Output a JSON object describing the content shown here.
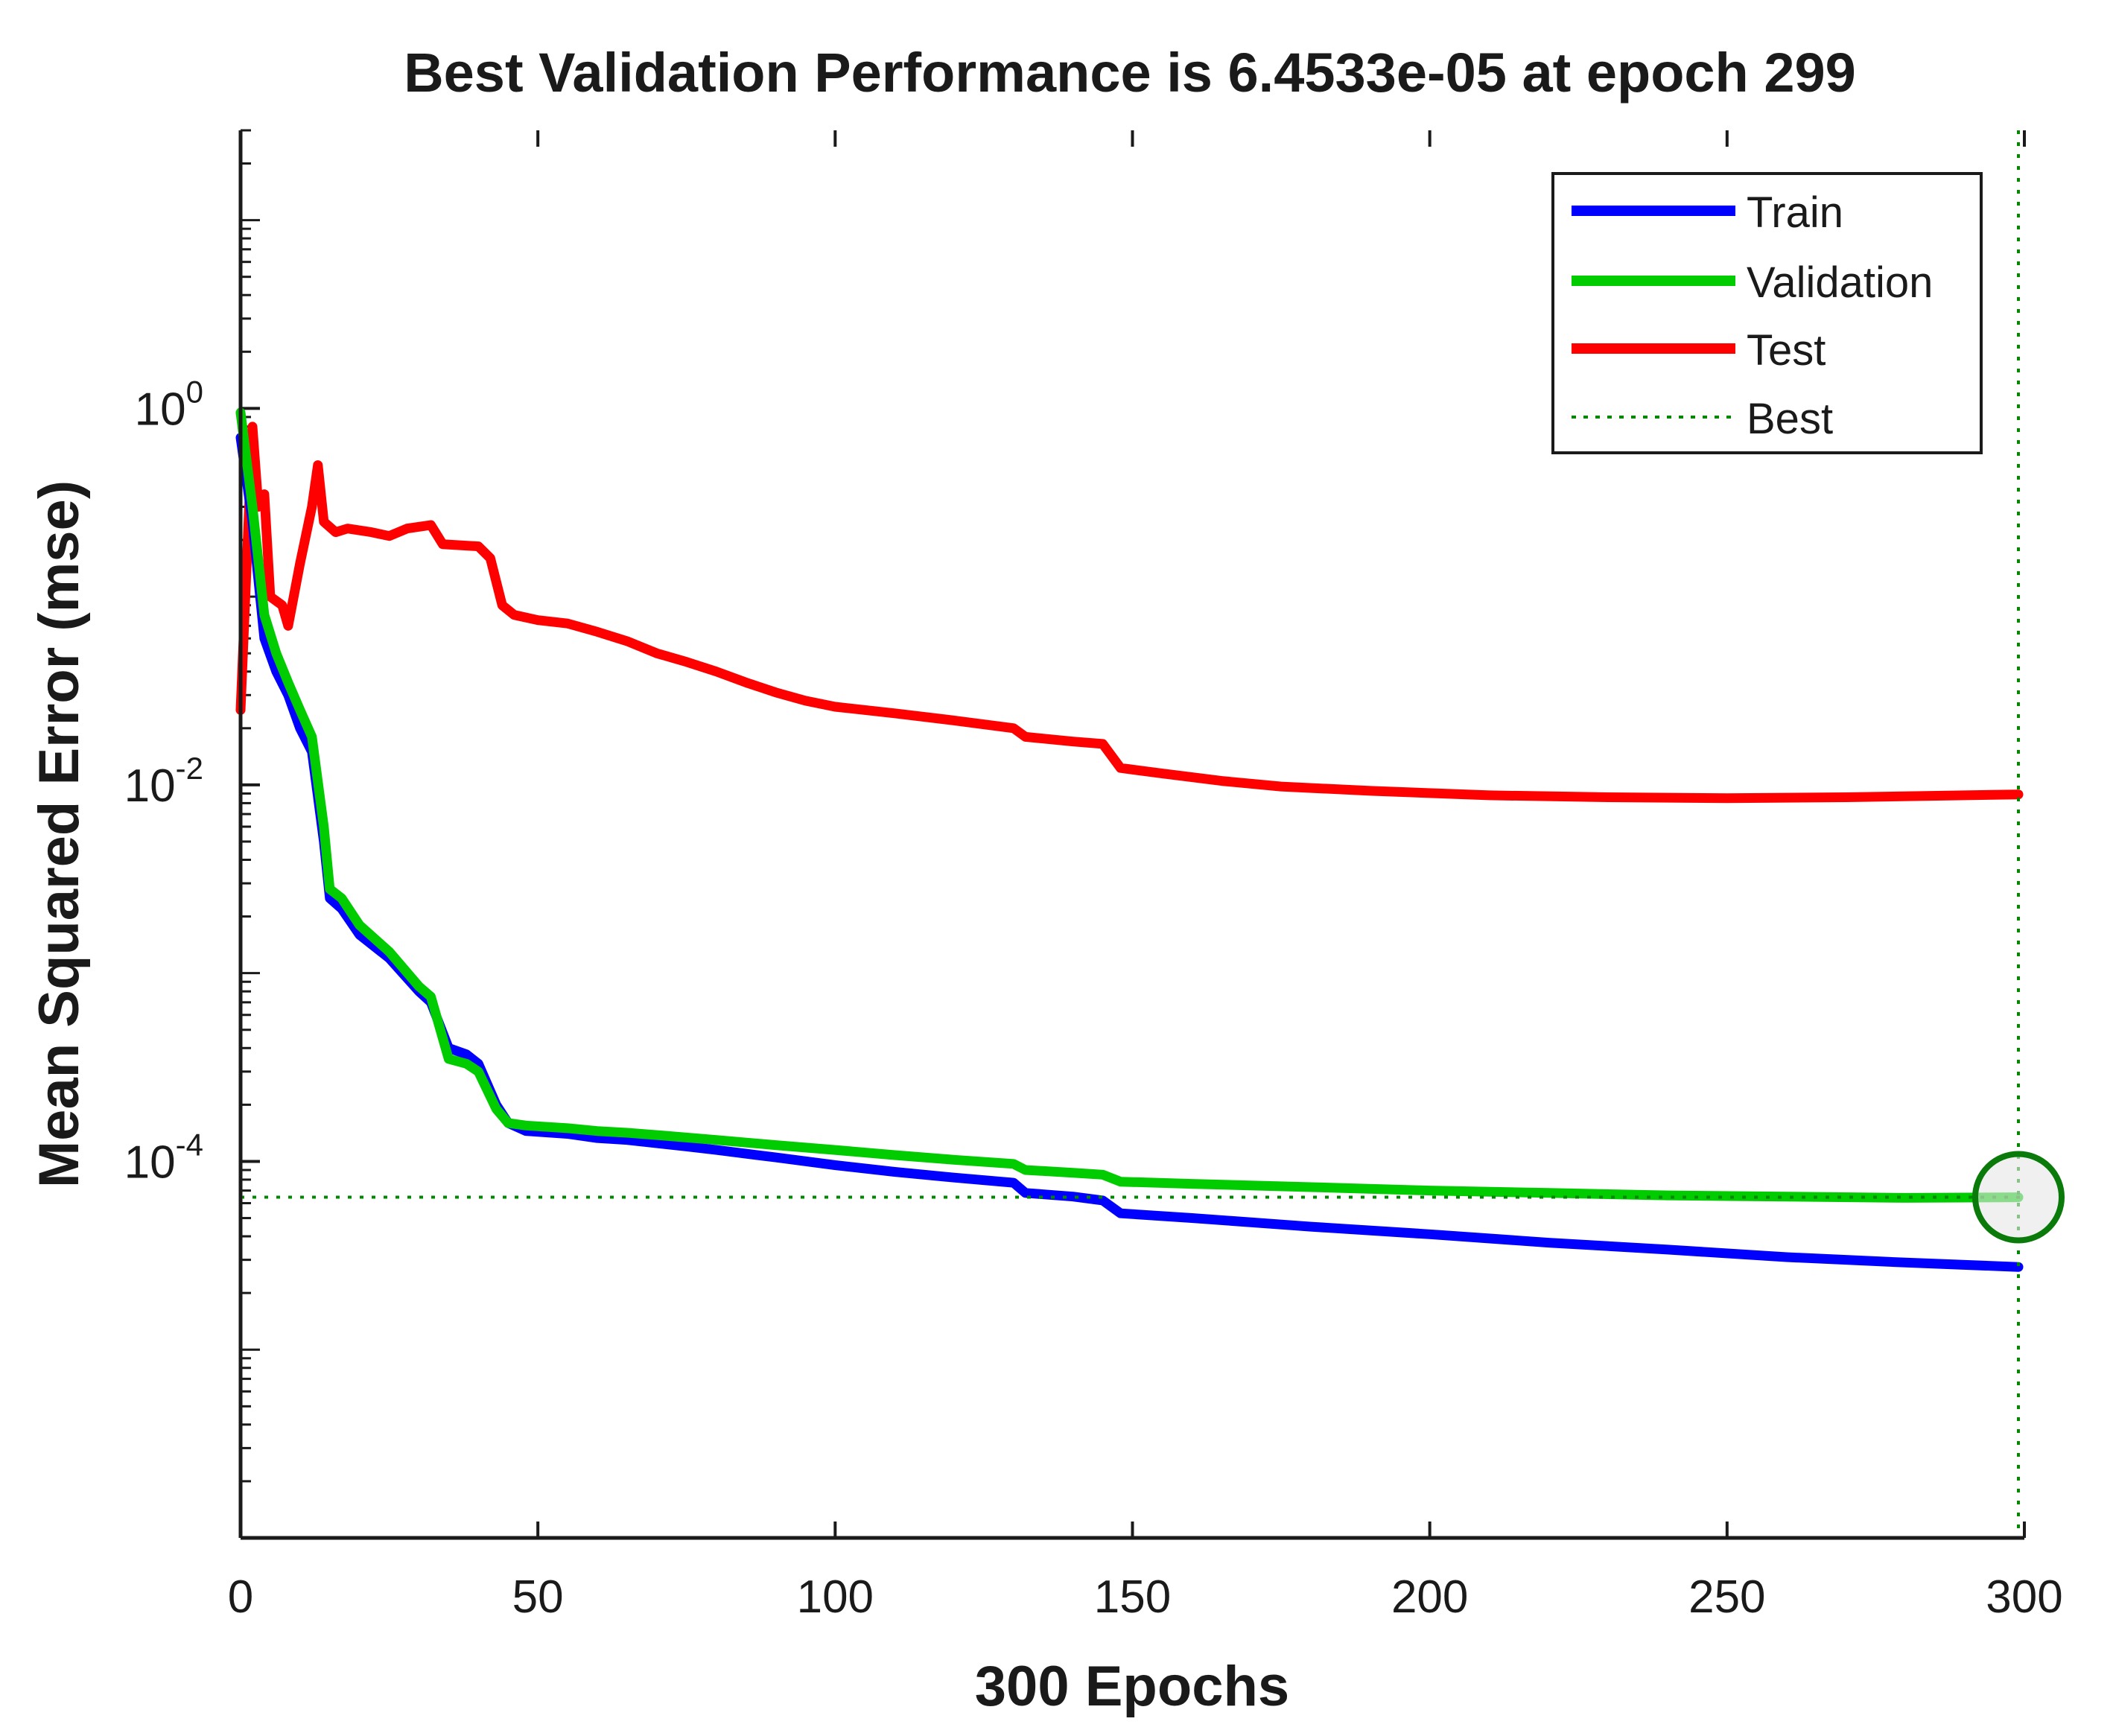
{
  "chart_data": {
    "type": "line",
    "title": "Best Validation Performance is 6.4533e-05 at epoch 299",
    "xlabel": "300 Epochs",
    "ylabel": "Mean Squared Error  (mse)",
    "xlim": [
      0,
      300
    ],
    "ylim": [
      1e-06,
      30
    ],
    "yscale": "log",
    "xticks": [
      0,
      50,
      100,
      150,
      200,
      250,
      300
    ],
    "yticks": [
      {
        "value": 1,
        "base": "10",
        "exp": "0"
      },
      {
        "value": 0.01,
        "base": "10",
        "exp": "-2"
      },
      {
        "value": 0.0001,
        "base": "10",
        "exp": "-4"
      }
    ],
    "legend_position": "top-right",
    "best": {
      "epoch": 299,
      "value": 6.4533e-05
    },
    "series": [
      {
        "name": "Train",
        "color": "#0000ff",
        "points": [
          [
            0,
            0.7
          ],
          [
            2,
            0.25
          ],
          [
            4,
            0.06
          ],
          [
            6,
            0.04
          ],
          [
            8,
            0.03
          ],
          [
            10,
            0.02
          ],
          [
            12,
            0.015
          ],
          [
            14,
            0.005
          ],
          [
            15,
            0.0025
          ],
          [
            17,
            0.0022
          ],
          [
            20,
            0.0016
          ],
          [
            25,
            0.0012
          ],
          [
            30,
            0.0008
          ],
          [
            32,
            0.0007
          ],
          [
            35,
            0.0004
          ],
          [
            38,
            0.00037
          ],
          [
            40,
            0.00033
          ],
          [
            43,
            0.0002
          ],
          [
            45,
            0.00016
          ],
          [
            48,
            0.000145
          ],
          [
            55,
            0.00014
          ],
          [
            60,
            0.000133
          ],
          [
            65,
            0.00013
          ],
          [
            70,
            0.000125
          ],
          [
            75,
            0.00012
          ],
          [
            80,
            0.000115
          ],
          [
            90,
            0.000105
          ],
          [
            100,
            9.55e-05
          ],
          [
            110,
            8.8e-05
          ],
          [
            120,
            8.2e-05
          ],
          [
            130,
            7.7e-05
          ],
          [
            132,
            6.8e-05
          ],
          [
            140,
            6.5e-05
          ],
          [
            145,
            6.2e-05
          ],
          [
            148,
            5.3e-05
          ],
          [
            160,
            5e-05
          ],
          [
            180,
            4.5e-05
          ],
          [
            200,
            4.1e-05
          ],
          [
            220,
            3.7e-05
          ],
          [
            240,
            3.4e-05
          ],
          [
            260,
            3.1e-05
          ],
          [
            280,
            2.9e-05
          ],
          [
            299,
            2.75e-05
          ]
        ]
      },
      {
        "name": "Validation",
        "color": "#00cc00",
        "points": [
          [
            0,
            0.95
          ],
          [
            2,
            0.3
          ],
          [
            4,
            0.08
          ],
          [
            6,
            0.05
          ],
          [
            8,
            0.035
          ],
          [
            10,
            0.025
          ],
          [
            12,
            0.018
          ],
          [
            14,
            0.006
          ],
          [
            15,
            0.0028
          ],
          [
            17,
            0.0025
          ],
          [
            20,
            0.0018
          ],
          [
            25,
            0.0013
          ],
          [
            30,
            0.00085
          ],
          [
            32,
            0.00075
          ],
          [
            35,
            0.00035
          ],
          [
            38,
            0.00033
          ],
          [
            40,
            0.0003
          ],
          [
            43,
            0.00019
          ],
          [
            45,
            0.00016
          ],
          [
            48,
            0.000155
          ],
          [
            55,
            0.00015
          ],
          [
            60,
            0.000145
          ],
          [
            65,
            0.000142
          ],
          [
            70,
            0.000138
          ],
          [
            80,
            0.00013
          ],
          [
            90,
            0.000122
          ],
          [
            100,
            0.000115
          ],
          [
            110,
            0.000108
          ],
          [
            120,
            0.000102
          ],
          [
            130,
            9.7e-05
          ],
          [
            132,
            9e-05
          ],
          [
            140,
            8.7e-05
          ],
          [
            145,
            8.5e-05
          ],
          [
            148,
            7.8e-05
          ],
          [
            160,
            7.6e-05
          ],
          [
            180,
            7.3e-05
          ],
          [
            200,
            7e-05
          ],
          [
            220,
            6.8e-05
          ],
          [
            240,
            6.6e-05
          ],
          [
            260,
            6.5e-05
          ],
          [
            280,
            6.4e-05
          ],
          [
            299,
            6.45e-05
          ]
        ]
      },
      {
        "name": "Test",
        "color": "#ff0000",
        "points": [
          [
            0,
            0.025
          ],
          [
            2,
            0.8
          ],
          [
            3,
            0.3
          ],
          [
            4,
            0.35
          ],
          [
            5,
            0.1
          ],
          [
            7,
            0.09
          ],
          [
            8,
            0.07
          ],
          [
            10,
            0.15
          ],
          [
            12,
            0.3
          ],
          [
            13,
            0.5
          ],
          [
            14,
            0.25
          ],
          [
            16,
            0.22
          ],
          [
            18,
            0.23
          ],
          [
            22,
            0.22
          ],
          [
            25,
            0.21
          ],
          [
            28,
            0.23
          ],
          [
            32,
            0.24
          ],
          [
            34,
            0.19
          ],
          [
            40,
            0.185
          ],
          [
            42,
            0.16
          ],
          [
            44,
            0.09
          ],
          [
            46,
            0.08
          ],
          [
            50,
            0.075
          ],
          [
            55,
            0.072
          ],
          [
            60,
            0.065
          ],
          [
            65,
            0.058
          ],
          [
            70,
            0.05
          ],
          [
            75,
            0.045
          ],
          [
            80,
            0.04
          ],
          [
            85,
            0.035
          ],
          [
            90,
            0.031
          ],
          [
            95,
            0.028
          ],
          [
            100,
            0.026
          ],
          [
            110,
            0.024
          ],
          [
            120,
            0.022
          ],
          [
            130,
            0.02
          ],
          [
            132,
            0.018
          ],
          [
            140,
            0.017
          ],
          [
            145,
            0.0165
          ],
          [
            148,
            0.0123
          ],
          [
            155,
            0.0115
          ],
          [
            165,
            0.0105
          ],
          [
            175,
            0.0098
          ],
          [
            190,
            0.0093
          ],
          [
            210,
            0.0088
          ],
          [
            230,
            0.0086
          ],
          [
            250,
            0.0085
          ],
          [
            270,
            0.0086
          ],
          [
            290,
            0.0088
          ],
          [
            299,
            0.0089
          ]
        ]
      },
      {
        "name": "Best",
        "color": "#008800",
        "style": "dotted"
      }
    ]
  }
}
